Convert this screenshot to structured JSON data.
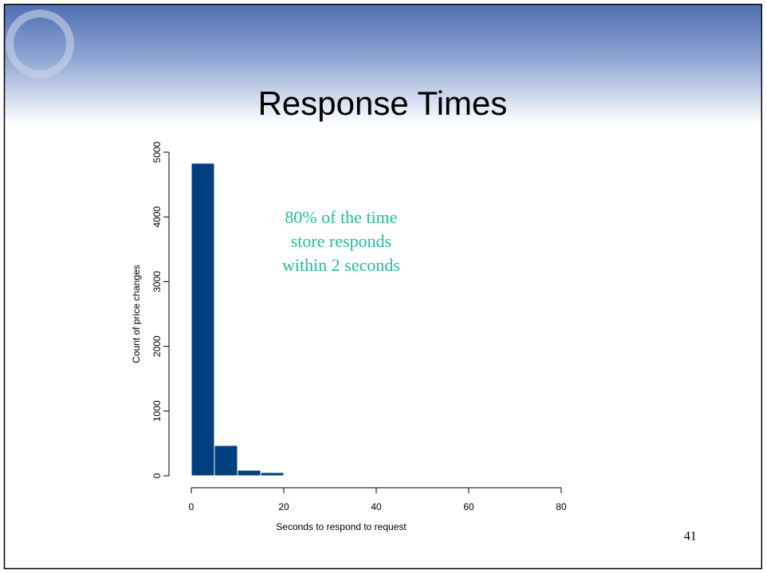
{
  "chart_data": {
    "type": "histogram",
    "title": "Response Times",
    "x_label": "Seconds to respond to request",
    "y_label": "Count of price changes",
    "annotation": [
      "80% of the time",
      "store responds",
      "within 2 seconds"
    ],
    "bins": [
      0,
      5,
      10,
      15,
      20,
      25,
      30,
      35,
      40,
      45,
      50,
      55,
      60,
      65,
      70,
      75,
      80,
      85,
      90,
      95
    ],
    "values": [
      4830,
      468,
      86,
      50,
      10,
      10,
      10,
      10,
      10,
      10,
      5,
      10,
      10,
      10,
      5,
      5,
      10,
      10,
      10
    ],
    "color": "#003f7f",
    "annotation_color": "#1fc09a",
    "xlim": [
      0,
      95
    ],
    "xticks": [
      0,
      20,
      40,
      60,
      80
    ],
    "ylim": [
      0,
      5000
    ],
    "yticks": [
      0,
      1000,
      2000,
      3000,
      4000,
      5000
    ]
  },
  "slide_number": "41"
}
